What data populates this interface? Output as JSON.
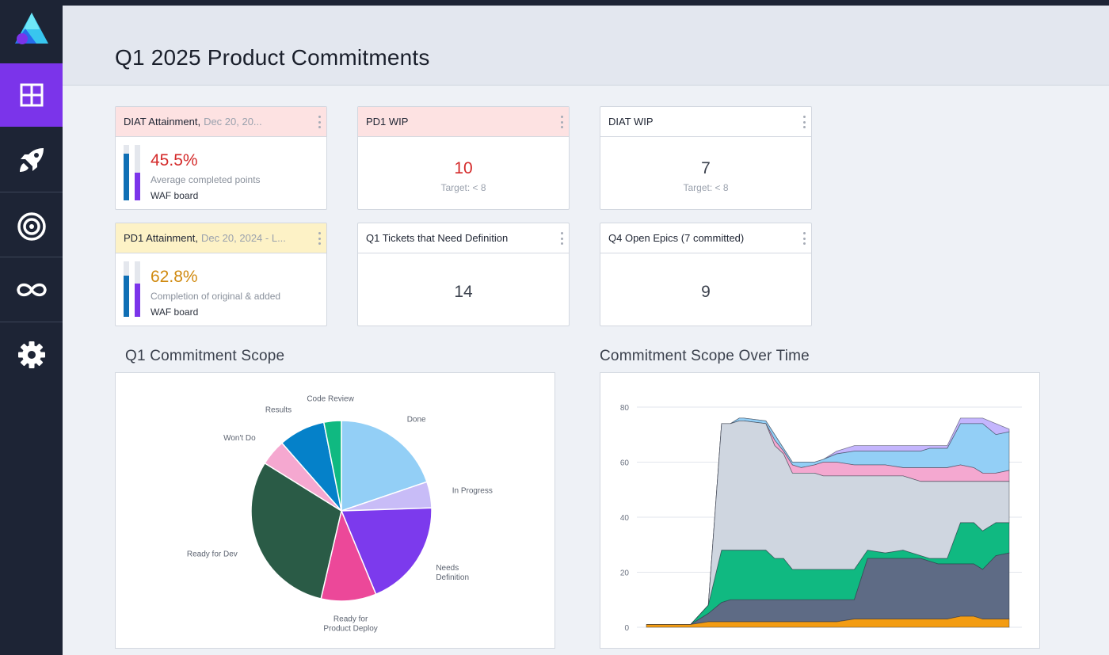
{
  "page": {
    "title": "Q1 2025 Product Commitments"
  },
  "sidebar": {
    "logo_icon": "triangle-logo-icon",
    "items": [
      {
        "name": "dashboard",
        "icon": "grid-icon",
        "active": true
      },
      {
        "name": "launch",
        "icon": "rocket-icon",
        "active": false
      },
      {
        "name": "goals",
        "icon": "target-icon",
        "active": false
      },
      {
        "name": "loops",
        "icon": "infinity-icon",
        "active": false
      },
      {
        "name": "settings",
        "icon": "gear-icon",
        "active": false
      }
    ],
    "active_color": "#7b34ea"
  },
  "cards": {
    "diat_attainment": {
      "title": "DIAT Attainment,",
      "date": "Dec 20, 20...",
      "percent": "45.5%",
      "percent_color": "#d42a2a",
      "description": "Average completed points",
      "board": "WAF board",
      "bar_blue_fill": 0.85,
      "bar_purple_fill": 0.5
    },
    "pd1_wip": {
      "title": "PD1 WIP",
      "value": "10",
      "value_color": "#d42a2a",
      "target": "Target: < 8"
    },
    "diat_wip": {
      "title": "DIAT WIP",
      "value": "7",
      "target": "Target: < 8"
    },
    "pd1_attainment": {
      "title": "PD1 Attainment,",
      "date": "Dec 20, 2024 - L...",
      "percent": "62.8%",
      "percent_color": "#d08a10",
      "description": "Completion of original & added",
      "board": "WAF board",
      "bar_blue_fill": 0.75,
      "bar_purple_fill": 0.6
    },
    "q1_tickets": {
      "title": "Q1 Tickets that Need Definition",
      "value": "14"
    },
    "q4_epics": {
      "title": "Q4 Open Epics (7 committed)",
      "value": "9"
    }
  },
  "pie_title": "Q1 Commitment Scope",
  "area_title": "Commitment Scope Over Time",
  "chart_data": [
    {
      "type": "pie",
      "title": "Q1 Commitment Scope",
      "slices": [
        {
          "label": "Done",
          "value": 19,
          "color": "#93cff6"
        },
        {
          "label": "In Progress",
          "value": 4.5,
          "color": "#c8bcf7"
        },
        {
          "label": "Needs Definition",
          "value": 18.5,
          "color": "#7c3aed"
        },
        {
          "label": "Ready for Product Deploy",
          "value": 9.5,
          "color": "#ec4899"
        },
        {
          "label": "Ready for Dev",
          "value": 29,
          "color": "#2a5b46"
        },
        {
          "label": "Won't Do",
          "value": 4.5,
          "color": "#f5a8d0"
        },
        {
          "label": "Results",
          "value": 8,
          "color": "#0581c9"
        },
        {
          "label": "Code Review",
          "value": 3,
          "color": "#10b981"
        }
      ]
    },
    {
      "type": "area",
      "title": "Commitment Scope Over Time",
      "ylim": [
        0,
        80
      ],
      "yticks": [
        0,
        20,
        40,
        60,
        80
      ],
      "x": [
        0,
        3,
        7,
        9,
        10,
        14,
        17,
        19,
        21,
        22,
        27,
        29,
        31,
        33,
        35,
        38,
        40,
        43,
        47,
        50,
        54,
        58,
        62,
        64,
        66,
        68,
        71,
        74,
        76,
        79,
        82
      ],
      "stacked_totals": [
        {
          "name": "s1",
          "color": "#f39c12",
          "values": [
            1,
            1,
            1,
            1,
            1,
            2,
            2,
            2,
            2,
            2,
            2,
            2,
            2,
            2,
            2,
            2,
            2,
            2,
            3,
            3,
            3,
            3,
            3,
            3,
            3,
            3,
            4,
            4,
            3,
            3,
            3
          ]
        },
        {
          "name": "s2",
          "color": "#5e6b85",
          "values": [
            1,
            1,
            1,
            1,
            1,
            5,
            9,
            10,
            10,
            10,
            10,
            10,
            10,
            10,
            10,
            10,
            10,
            10,
            10,
            25,
            25,
            25,
            25,
            24,
            23,
            23,
            23,
            23,
            21,
            26,
            27
          ]
        },
        {
          "name": "s3",
          "color": "#10b981",
          "values": [
            1,
            1,
            1,
            1,
            1,
            8,
            28,
            28,
            28,
            28,
            28,
            25,
            25,
            21,
            21,
            21,
            21,
            21,
            21,
            28,
            27,
            28,
            26,
            25,
            25,
            25,
            38,
            38,
            35,
            38,
            38
          ]
        },
        {
          "name": "s4",
          "color": "#cfd6e0",
          "values": [
            1,
            1,
            1,
            1,
            1,
            8,
            74,
            74,
            75,
            75,
            74,
            66,
            63,
            56,
            56,
            56,
            55,
            55,
            55,
            55,
            55,
            55,
            53,
            53,
            53,
            53,
            53,
            53,
            53,
            53,
            53
          ]
        },
        {
          "name": "s5",
          "color": "#f4a8d0",
          "values": [
            1,
            1,
            1,
            1,
            1,
            8,
            74,
            74,
            75,
            75,
            74,
            68,
            64,
            59,
            58,
            59,
            60,
            60,
            59,
            59,
            59,
            58,
            58,
            58,
            58,
            58,
            59,
            58,
            56,
            56,
            57
          ]
        },
        {
          "name": "s6",
          "color": "#93cff6",
          "values": [
            1,
            1,
            1,
            1,
            1,
            8,
            74,
            74,
            76,
            76,
            75,
            70,
            65,
            60,
            60,
            60,
            61,
            63,
            64,
            64,
            64,
            64,
            64,
            65,
            65,
            65,
            74,
            74,
            74,
            70,
            71
          ]
        },
        {
          "name": "s7",
          "color": "#c4b5fd",
          "values": [
            1,
            1,
            1,
            1,
            1,
            8,
            74,
            74,
            76,
            76,
            75,
            70,
            65,
            60,
            60,
            60,
            61,
            64,
            66,
            66,
            66,
            66,
            66,
            66,
            66,
            66,
            76,
            76,
            76,
            74,
            72
          ]
        }
      ]
    }
  ]
}
